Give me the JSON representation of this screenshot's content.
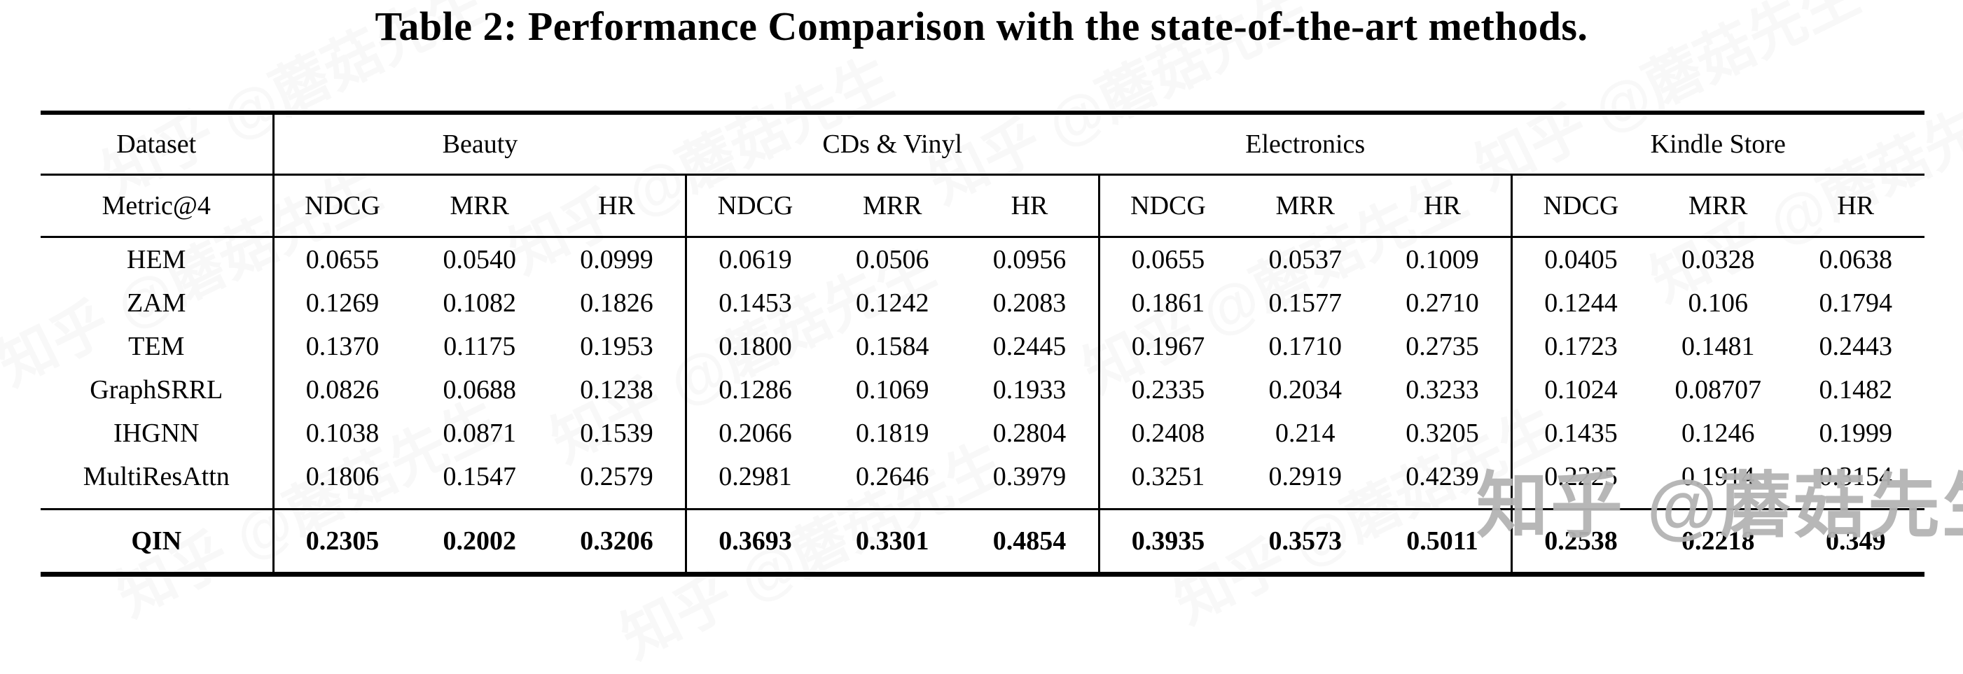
{
  "title": "Table 2: Performance Comparison with the state-of-the-art methods.",
  "watermark": {
    "text": "知乎 @蘑菇先生",
    "color": "#b4b4b4"
  },
  "table": {
    "dataset_header": "Dataset",
    "metric_header": "Metric@4",
    "groups": [
      {
        "label": "Beauty"
      },
      {
        "label": "CDs & Vinyl"
      },
      {
        "label": "Electronics"
      },
      {
        "label": "Kindle Store"
      }
    ],
    "metrics": [
      "NDCG",
      "MRR",
      "HR"
    ],
    "rows": [
      {
        "method": "HEM",
        "values": [
          "0.0655",
          "0.0540",
          "0.0999",
          "0.0619",
          "0.0506",
          "0.0956",
          "0.0655",
          "0.0537",
          "0.1009",
          "0.0405",
          "0.0328",
          "0.0638"
        ]
      },
      {
        "method": "ZAM",
        "values": [
          "0.1269",
          "0.1082",
          "0.1826",
          "0.1453",
          "0.1242",
          "0.2083",
          "0.1861",
          "0.1577",
          "0.2710",
          "0.1244",
          "0.106",
          "0.1794"
        ]
      },
      {
        "method": "TEM",
        "values": [
          "0.1370",
          "0.1175",
          "0.1953",
          "0.1800",
          "0.1584",
          "0.2445",
          "0.1967",
          "0.1710",
          "0.2735",
          "0.1723",
          "0.1481",
          "0.2443"
        ]
      },
      {
        "method": "GraphSRRL",
        "values": [
          "0.0826",
          "0.0688",
          "0.1238",
          "0.1286",
          "0.1069",
          "0.1933",
          "0.2335",
          "0.2034",
          "0.3233",
          "0.1024",
          "0.08707",
          "0.1482"
        ]
      },
      {
        "method": "IHGNN",
        "values": [
          "0.1038",
          "0.0871",
          "0.1539",
          "0.2066",
          "0.1819",
          "0.2804",
          "0.2408",
          "0.214",
          "0.3205",
          "0.1435",
          "0.1246",
          "0.1999"
        ]
      },
      {
        "method": "MultiResAttn",
        "values": [
          "0.1806",
          "0.1547",
          "0.2579",
          "0.2981",
          "0.2646",
          "0.3979",
          "0.3251",
          "0.2919",
          "0.4239",
          "0.2225",
          "0.1914",
          "0.3154"
        ]
      }
    ],
    "highlight_row": {
      "method": "QIN",
      "values": [
        "0.2305",
        "0.2002",
        "0.3206",
        "0.3693",
        "0.3301",
        "0.4854",
        "0.3935",
        "0.3573",
        "0.5011",
        "0.2538",
        "0.2218",
        "0.349"
      ]
    }
  }
}
